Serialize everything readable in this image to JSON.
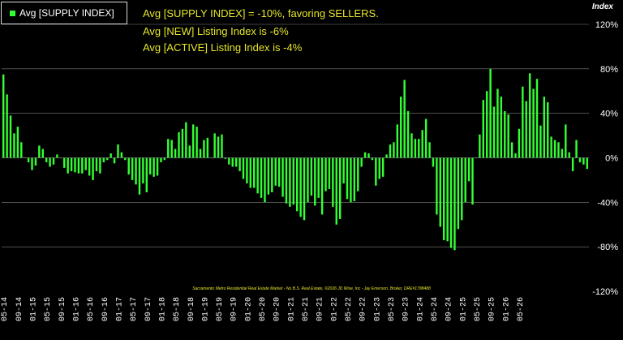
{
  "legend": {
    "label": "Avg [SUPPLY INDEX]",
    "color": "#33ff33"
  },
  "annotations": [
    "Avg [SUPPLY INDEX] = -10%, favoring SELLERS.",
    "Avg [NEW] Listing Index is -6%",
    "Avg [ACTIVE] Listing Index is -4%"
  ],
  "y_axis_title": "Index",
  "footer": "Sacramento Metro Residential Real Estate Market - No B.S. Real Estate, ©2026 JD Wise, Inc - Jay Emerson, Broker, DRE#1788488",
  "colors": {
    "background": "#000000",
    "bar": "#33ff33",
    "grid": "#7f7f7f",
    "text": "#ffffff",
    "annotation": "#e6e629"
  },
  "chart_data": {
    "type": "bar",
    "series": [
      {
        "name": "Avg [SUPPLY INDEX]"
      }
    ],
    "ylim": [
      -120,
      120
    ],
    "ytick_values": [
      -120,
      -80,
      -40,
      0,
      40,
      80,
      120
    ],
    "ytick_labels": [
      "-120%",
      "-80%",
      "-40%",
      "0%",
      "40%",
      "80%",
      "120%"
    ],
    "y_axis_position": "right",
    "xtick_labels": [
      "05-14",
      "09-14",
      "01-15",
      "05-15",
      "09-15",
      "01-16",
      "05-16",
      "09-16",
      "01-17",
      "05-17",
      "09-17",
      "01-18",
      "05-18",
      "09-18",
      "01-19",
      "05-19",
      "09-19",
      "01-20",
      "05-20",
      "09-20",
      "01-21",
      "05-21",
      "09-21",
      "01-22",
      "05-22",
      "09-22",
      "01-23",
      "05-23",
      "09-23",
      "01-24",
      "05-24",
      "09-24",
      "01-25",
      "05-25",
      "09-25",
      "01-26",
      "05-26"
    ],
    "months_start": "05-14",
    "values": [
      75,
      57,
      38,
      22,
      28,
      14,
      0,
      -4,
      -11,
      -7,
      11,
      8,
      -4,
      -8,
      -6,
      3,
      0,
      -9,
      -14,
      -12,
      -13,
      -14,
      -14,
      -11,
      -16,
      -20,
      -12,
      -14,
      -4,
      -2,
      4,
      -5,
      12,
      5,
      -2,
      -15,
      -20,
      -24,
      -33,
      -23,
      -31,
      -15,
      -17,
      -16,
      -4,
      -2,
      17,
      16,
      8,
      23,
      26,
      32,
      11,
      30,
      28,
      8,
      16,
      18,
      0,
      22,
      19,
      21,
      -1,
      -6,
      -8,
      -8,
      -12,
      -19,
      -23,
      -27,
      -27,
      -32,
      -36,
      -40,
      -33,
      -31,
      -25,
      -26,
      -35,
      -41,
      -44,
      -42,
      -48,
      -53,
      -56,
      -40,
      -34,
      -43,
      -36,
      -51,
      -30,
      -28,
      -44,
      -60,
      -55,
      -23,
      -37,
      -40,
      -39,
      -30,
      -8,
      5,
      4,
      -2,
      -25,
      -19,
      -17,
      3,
      12,
      14,
      30,
      55,
      70,
      42,
      22,
      17,
      17,
      25,
      35,
      14,
      -8,
      -51,
      -62,
      -74,
      -75,
      -81,
      -83,
      -64,
      -56,
      -40,
      -21,
      -42,
      0,
      21,
      52,
      60,
      80,
      46,
      62,
      55,
      42,
      39,
      14,
      4,
      26,
      64,
      51,
      76,
      62,
      71,
      29,
      55,
      50,
      19,
      16,
      14,
      8,
      30,
      5,
      -12,
      16,
      -4,
      -6,
      -10
    ]
  }
}
